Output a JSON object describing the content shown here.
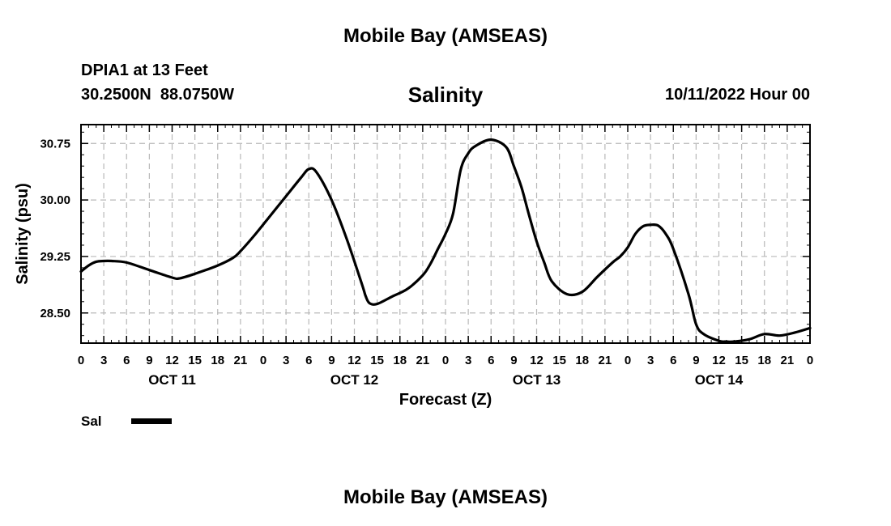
{
  "header": {
    "title": "Mobile Bay (AMSEAS)",
    "station": "DPIA1 at 13 Feet",
    "coordinates": "30.2500N  88.0750W",
    "subtitle": "Salinity",
    "forecast_time": "10/11/2022 Hour 00"
  },
  "footer": {
    "title": "Mobile Bay (AMSEAS)"
  },
  "legend": {
    "label": "Sal",
    "color": "#000000"
  },
  "chart_data": {
    "type": "line",
    "title": "Salinity",
    "xlabel": "Forecast (Z)",
    "ylabel": "Salinity (psu)",
    "ylim": [
      28.1,
      31.0
    ],
    "yticks": [
      "28.50",
      "29.25",
      "30.00",
      "30.75"
    ],
    "xlim": [
      0,
      96
    ],
    "x_tick_labels": [
      "0",
      "3",
      "6",
      "9",
      "12",
      "15",
      "18",
      "21",
      "0",
      "3",
      "6",
      "9",
      "12",
      "15",
      "18",
      "21",
      "0",
      "3",
      "6",
      "9",
      "12",
      "15",
      "18",
      "21",
      "0",
      "3",
      "6",
      "9",
      "12",
      "15",
      "18",
      "21",
      "0"
    ],
    "date_labels": [
      {
        "hour": 12,
        "label": "OCT 11"
      },
      {
        "hour": 36,
        "label": "OCT 12"
      },
      {
        "hour": 60,
        "label": "OCT 13"
      },
      {
        "hour": 84,
        "label": "OCT 14"
      }
    ],
    "grid": true,
    "legend_position": "bottom-left",
    "series": [
      {
        "name": "Sal",
        "color": "#000000",
        "x": [
          0,
          1,
          2,
          3,
          4,
          6,
          9,
          12,
          13,
          15,
          18,
          20,
          21,
          23,
          25,
          27,
          29,
          30,
          31,
          33,
          35,
          37,
          37.5,
          38,
          39,
          41,
          43,
          45,
          46,
          47,
          48,
          49,
          50,
          51,
          52,
          54,
          56,
          57,
          58,
          59,
          60,
          61,
          62,
          64,
          66,
          68,
          70,
          71,
          72,
          73,
          74,
          75,
          76,
          77,
          78,
          80,
          81,
          82,
          84,
          85,
          86,
          88,
          90,
          92,
          94,
          96
        ],
        "y": [
          29.05,
          29.13,
          29.18,
          29.19,
          29.19,
          29.17,
          29.07,
          28.97,
          28.96,
          29.02,
          29.13,
          29.23,
          29.32,
          29.55,
          29.8,
          30.05,
          30.3,
          30.41,
          30.37,
          30.0,
          29.48,
          28.88,
          28.72,
          28.63,
          28.62,
          28.72,
          28.82,
          29.0,
          29.15,
          29.35,
          29.55,
          29.82,
          30.4,
          30.62,
          30.72,
          30.8,
          30.7,
          30.45,
          30.17,
          29.8,
          29.45,
          29.17,
          28.92,
          28.75,
          28.78,
          28.98,
          29.17,
          29.25,
          29.37,
          29.55,
          29.65,
          29.67,
          29.66,
          29.55,
          29.35,
          28.75,
          28.35,
          28.22,
          28.13,
          28.12,
          28.12,
          28.15,
          28.22,
          28.2,
          28.24,
          28.3
        ]
      }
    ]
  }
}
